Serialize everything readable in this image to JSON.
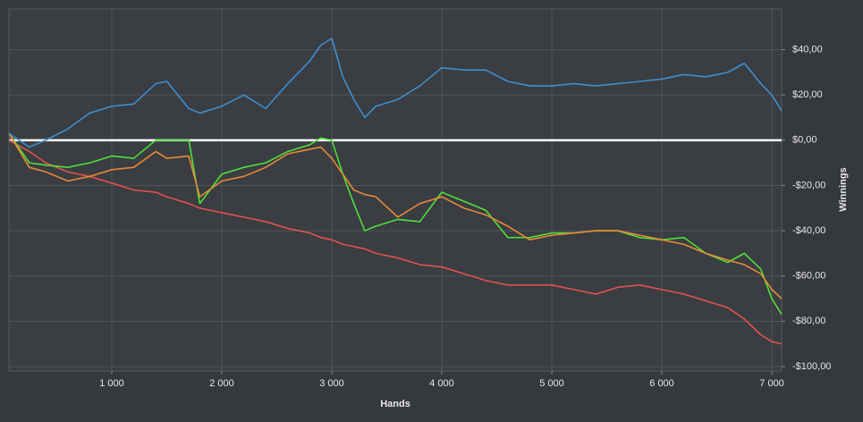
{
  "chart_data": {
    "type": "line",
    "x_label": "Hands",
    "y_label": "Winnings",
    "x": [
      65,
      250,
      400,
      600,
      800,
      1000,
      1200,
      1400,
      1500,
      1700,
      1800,
      2000,
      2200,
      2400,
      2600,
      2800,
      2900,
      3000,
      3100,
      3200,
      3300,
      3400,
      3600,
      3800,
      4000,
      4200,
      4400,
      4600,
      4800,
      5000,
      5200,
      5400,
      5600,
      5800,
      6000,
      6200,
      6400,
      6600,
      6750,
      6900,
      7000,
      7089
    ],
    "series": [
      {
        "color": "#3d8fd1",
        "values": [
          3,
          -3,
          0,
          5,
          12,
          15,
          16,
          25,
          26,
          14,
          12,
          15,
          20,
          14,
          25,
          35,
          42,
          45,
          28,
          18,
          10,
          15,
          18,
          24,
          32,
          31,
          31,
          26,
          24,
          24,
          25,
          24,
          25,
          26,
          27,
          29,
          28,
          30,
          34,
          25,
          20,
          13
        ]
      },
      {
        "color": "#e8893a",
        "values": [
          3,
          -12,
          -14,
          -18,
          -16,
          -13,
          -12,
          -5,
          -8,
          -7,
          -25,
          -18,
          -16,
          -12,
          -6,
          -4,
          -3,
          -8,
          -15,
          -22,
          -24,
          -25,
          -34,
          -28,
          -25,
          -30,
          -33,
          -38,
          -44,
          -42,
          -41,
          -40,
          -40,
          -42,
          -44,
          -46,
          -50,
          -53,
          -55,
          -59,
          -66,
          -70
        ]
      },
      {
        "color": "#4ee03a",
        "values": [
          3,
          -10,
          -11,
          -12,
          -10,
          -7,
          -8,
          0,
          0,
          0,
          -28,
          -15,
          -12,
          -10,
          -5,
          -2,
          1,
          0,
          -15,
          -28,
          -40,
          -38,
          -35,
          -36,
          -23,
          -27,
          -31,
          -43,
          -43,
          -41,
          -41,
          -40,
          -40,
          -43,
          -44,
          -43,
          -50,
          -54,
          -50,
          -57,
          -70,
          -77
        ]
      },
      {
        "color": "#e0524f",
        "values": [
          0,
          -5,
          -10,
          -14,
          -16,
          -19,
          -22,
          -23,
          -25,
          -28,
          -30,
          -32,
          -34,
          -36,
          -39,
          -41,
          -43,
          -44,
          -46,
          -47,
          -48,
          -50,
          -52,
          -55,
          -56,
          -59,
          -62,
          -64,
          -64,
          -64,
          -66,
          -68,
          -65,
          -64,
          -66,
          -68,
          -71,
          -74,
          -79,
          -86,
          -89,
          -90
        ]
      }
    ],
    "xlim": [
      65,
      7089
    ],
    "ylim": [
      -102,
      58
    ],
    "xticks": [
      {
        "value": 1000,
        "label": "1 000"
      },
      {
        "value": 2000,
        "label": "2 000"
      },
      {
        "value": 3000,
        "label": "3 000"
      },
      {
        "value": 4000,
        "label": "4 000"
      },
      {
        "value": 5000,
        "label": "5 000"
      },
      {
        "value": 6000,
        "label": "6 000"
      },
      {
        "value": 7000,
        "label": "7 000"
      }
    ],
    "yticks": [
      {
        "value": -100,
        "label": "-$100,00"
      },
      {
        "value": -80,
        "label": "-$80,00"
      },
      {
        "value": -60,
        "label": "-$60,00"
      },
      {
        "value": -40,
        "label": "-$40,00"
      },
      {
        "value": -20,
        "label": "-$20,00"
      },
      {
        "value": 0,
        "label": "$0,00"
      },
      {
        "value": 20,
        "label": "$20,00"
      },
      {
        "value": 40,
        "label": "$40,00"
      }
    ],
    "grid": true,
    "zero_line": true
  }
}
